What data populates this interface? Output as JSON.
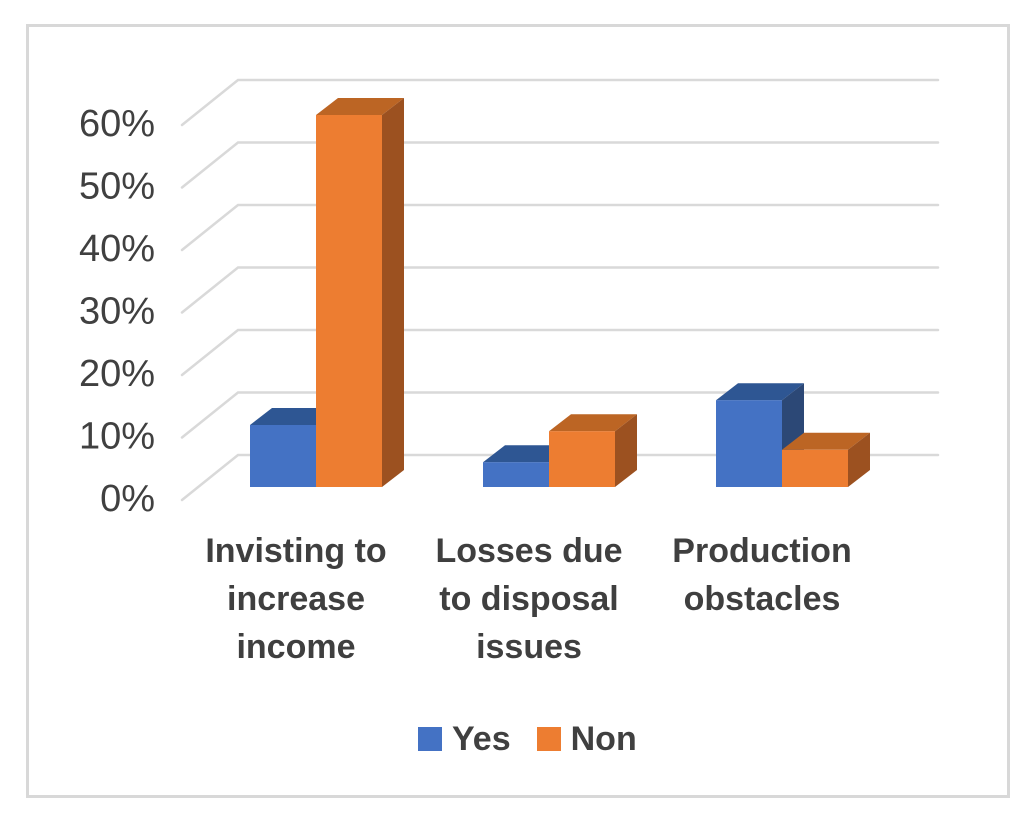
{
  "chart_data": {
    "type": "bar",
    "projection": "3d-clustered-column",
    "title": "",
    "xlabel": "",
    "ylabel": "",
    "categories": [
      "Invisting to increase income",
      "Losses due to disposal issues",
      "Production obstacles"
    ],
    "category_lines": [
      [
        "Invisting to",
        "increase",
        "income"
      ],
      [
        "Losses due",
        "to disposal",
        "issues"
      ],
      [
        "Production",
        "obstacles"
      ]
    ],
    "series": [
      {
        "name": "Yes",
        "values": [
          10,
          4,
          14
        ],
        "color": "#4472C4",
        "color_top": "#2E5693",
        "color_side": "#2C4876"
      },
      {
        "name": "Non",
        "values": [
          60,
          9,
          6
        ],
        "color": "#ED7D31",
        "color_top": "#BC6524",
        "color_side": "#9C5120"
      }
    ],
    "y_ticks": [
      "0%",
      "10%",
      "20%",
      "30%",
      "40%",
      "50%",
      "60%"
    ],
    "y_tick_values": [
      0,
      10,
      20,
      30,
      40,
      50,
      60
    ],
    "ylim": [
      0,
      60
    ],
    "y_unit": "%",
    "grid": true,
    "legend_position": "bottom",
    "gridline_color": "#D9D9D9",
    "border_color": "#D8D8D8",
    "text_color": "#404040"
  }
}
